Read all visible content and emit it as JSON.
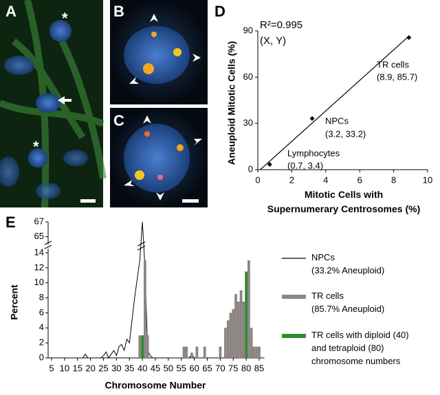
{
  "panel_labels": [
    "A",
    "B",
    "C",
    "D",
    "E"
  ],
  "image_annotations": [
    "*",
    "*"
  ],
  "chart_data": [
    {
      "type": "scatter",
      "ylabel": "Aneuploid Mitotic Cells (%)",
      "xlabel": "Mitotic Cells with\nSupernumerary Centrosomes (%)",
      "annotations": [
        "R²=0.995",
        "(X, Y)",
        "TR cells",
        "(8.9, 85.7)",
        "NPCs",
        "(3.2, 33.2)",
        "Lymphocytes",
        "(0.7, 3.4)"
      ],
      "x": [
        0.7,
        3.2,
        8.9
      ],
      "values": [
        3.4,
        33.2,
        85.7
      ],
      "color": "#000000",
      "trendline": true,
      "xlim": [
        0,
        10
      ],
      "xticks": [
        0,
        2,
        4,
        6,
        8,
        10
      ],
      "ylim": [
        0,
        90
      ],
      "yticks": [
        0,
        30,
        60,
        90
      ]
    },
    {
      "type": "histogram-line",
      "ylabel": "Percent",
      "xlabel": "Chromosome Number",
      "xlim": [
        4,
        87
      ],
      "xticks": [
        5,
        10,
        15,
        20,
        25,
        30,
        35,
        40,
        45,
        50,
        55,
        60,
        65,
        70,
        75,
        80,
        85
      ],
      "ylim": [
        0,
        67
      ],
      "ybreak": [
        14.5,
        64.5
      ],
      "yticks": [
        0,
        2,
        4,
        6,
        8,
        10,
        12,
        14,
        65,
        67
      ],
      "series": [
        {
          "name": "NPCs\n(33.2% Aneuploid)",
          "kind": "line",
          "color": "#000000",
          "x": [
            5,
            17,
            18,
            19,
            24,
            25,
            26,
            27,
            28,
            29,
            30,
            31,
            32,
            33,
            34,
            35,
            36,
            37,
            38,
            39,
            40,
            41,
            42,
            43,
            44,
            58,
            59,
            60,
            61,
            86
          ],
          "values": [
            0,
            0,
            0.5,
            0,
            0,
            0.3,
            0.8,
            0,
            0.5,
            1,
            0.3,
            1.5,
            1.8,
            1,
            2.5,
            2,
            5,
            8,
            10.5,
            13,
            67,
            12,
            1,
            0.3,
            0,
            0,
            0.5,
            0,
            0,
            0
          ]
        },
        {
          "name": "TR cells\n(85.7% Aneuploid)",
          "kind": "bar",
          "color": "#8c8582",
          "x": [
            39,
            41,
            42,
            56,
            57,
            59,
            61,
            64,
            70,
            72,
            73,
            74,
            75,
            76,
            77,
            78,
            79,
            81,
            82,
            83,
            84,
            85
          ],
          "values": [
            3,
            13,
            3,
            1.5,
            1.5,
            0.7,
            1.5,
            1.5,
            1.5,
            4,
            5,
            6,
            6.5,
            8.5,
            7.5,
            9,
            7.5,
            13,
            4,
            1.5,
            1.5,
            1.5
          ]
        },
        {
          "name": "TR cells with diploid (40)\nand tetraploid (80)\nchromosome numbers",
          "kind": "bar",
          "color": "#2e8b2e",
          "x": [
            40,
            80
          ],
          "values": [
            3,
            11.5
          ]
        }
      ]
    }
  ]
}
